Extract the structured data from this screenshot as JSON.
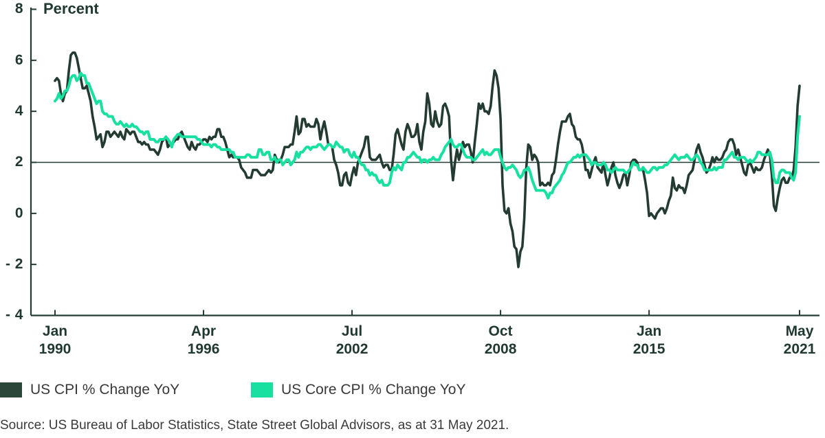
{
  "colors": {
    "dark_line": "#233B31",
    "mint_line": "#17E0A0",
    "dark_swatch": "#2C463A",
    "axis": "#233B31",
    "label_text": "#1F3830",
    "body_text": "#3A3A3A"
  },
  "chart_data": {
    "type": "line",
    "title": "",
    "xlabel": "",
    "ylabel": "Percent",
    "ylim": [
      -4,
      8
    ],
    "grid": false,
    "reference_line": 2,
    "frequency": "monthly",
    "x_start": "Jan 1990",
    "x_end": "May 2021",
    "y_ticks": [
      8,
      6,
      4,
      2,
      0,
      -2,
      -4
    ],
    "y_tick_labels": [
      "8",
      "6",
      "4",
      "2",
      "0",
      "- 2",
      "- 4"
    ],
    "x_ticks": [
      {
        "month": "Jan",
        "year": "1990",
        "index": 0
      },
      {
        "month": "Apr",
        "year": "1996",
        "index": 75
      },
      {
        "month": "Jul",
        "year": "2002",
        "index": 150
      },
      {
        "month": "Oct",
        "year": "2008",
        "index": 225
      },
      {
        "month": "Jan",
        "year": "2015",
        "index": 300
      },
      {
        "month": "May",
        "year": "2021",
        "index": 376
      }
    ],
    "series": [
      {
        "name": "US CPI % Change YoY",
        "color": "#233B31",
        "values": [
          5.2,
          5.3,
          5.2,
          4.7,
          4.4,
          4.7,
          4.8,
          5.6,
          6.2,
          6.3,
          6.3,
          6.1,
          5.7,
          5.3,
          4.9,
          4.9,
          5.0,
          4.7,
          4.4,
          3.8,
          3.4,
          2.9,
          3.0,
          3.1,
          2.6,
          2.8,
          3.2,
          3.2,
          3.0,
          3.1,
          3.2,
          3.1,
          3.0,
          3.2,
          3.0,
          2.9,
          3.3,
          3.2,
          3.1,
          3.2,
          3.2,
          3.0,
          2.8,
          2.8,
          2.7,
          2.8,
          2.7,
          2.7,
          2.5,
          2.5,
          2.5,
          2.4,
          2.3,
          2.5,
          2.8,
          2.9,
          3.0,
          2.6,
          2.7,
          2.7,
          2.8,
          2.9,
          2.9,
          3.1,
          3.2,
          3.0,
          2.8,
          2.6,
          2.5,
          2.8,
          2.6,
          2.5,
          2.7,
          2.7,
          2.8,
          2.9,
          2.9,
          2.8,
          3.0,
          2.9,
          3.0,
          3.0,
          3.3,
          3.3,
          3.0,
          3.0,
          2.8,
          2.5,
          2.2,
          2.3,
          2.2,
          2.2,
          2.2,
          2.1,
          1.8,
          1.7,
          1.6,
          1.4,
          1.4,
          1.4,
          1.7,
          1.7,
          1.7,
          1.6,
          1.5,
          1.5,
          1.5,
          1.6,
          1.7,
          1.6,
          1.7,
          2.3,
          2.1,
          2.0,
          2.1,
          2.3,
          2.6,
          2.6,
          2.6,
          2.7,
          2.7,
          3.2,
          3.8,
          3.1,
          3.2,
          3.7,
          3.7,
          3.4,
          3.5,
          3.4,
          3.4,
          3.4,
          3.7,
          3.5,
          2.9,
          3.3,
          3.6,
          3.2,
          2.7,
          2.7,
          2.6,
          2.1,
          1.9,
          1.6,
          1.1,
          1.1,
          1.5,
          1.6,
          1.2,
          1.1,
          1.5,
          1.8,
          1.5,
          2.0,
          2.2,
          2.4,
          2.6,
          3.0,
          3.0,
          2.2,
          2.1,
          2.1,
          2.1,
          2.2,
          2.3,
          2.0,
          1.8,
          1.9,
          1.9,
          1.7,
          1.7,
          2.3,
          3.1,
          3.3,
          3.0,
          2.7,
          2.5,
          3.2,
          3.5,
          3.3,
          3.0,
          3.0,
          3.1,
          3.5,
          2.8,
          2.5,
          3.2,
          3.6,
          4.7,
          4.3,
          3.5,
          3.4,
          4.0,
          3.6,
          3.4,
          3.5,
          4.2,
          4.3,
          4.1,
          3.8,
          2.1,
          1.3,
          2.0,
          2.5,
          2.1,
          2.4,
          2.8,
          2.6,
          2.7,
          2.7,
          2.4,
          2.0,
          2.8,
          3.5,
          4.3,
          4.1,
          4.3,
          4.0,
          4.0,
          3.9,
          4.2,
          5.0,
          5.6,
          5.4,
          4.9,
          3.7,
          1.1,
          0.1,
          0.0,
          0.2,
          -0.4,
          -0.7,
          -1.3,
          -1.4,
          -2.1,
          -1.5,
          -1.3,
          -0.2,
          1.8,
          2.7,
          2.6,
          2.1,
          2.3,
          2.2,
          2.0,
          1.1,
          1.2,
          1.1,
          1.1,
          1.2,
          1.1,
          1.5,
          1.6,
          2.1,
          2.7,
          3.2,
          3.6,
          3.6,
          3.6,
          3.8,
          3.9,
          3.5,
          3.4,
          3.0,
          2.9,
          2.9,
          2.7,
          2.3,
          1.7,
          1.7,
          1.4,
          1.7,
          2.0,
          2.2,
          1.8,
          1.7,
          1.6,
          2.0,
          1.5,
          1.1,
          1.4,
          1.8,
          2.0,
          1.5,
          1.2,
          1.0,
          1.2,
          1.5,
          1.6,
          1.1,
          1.5,
          2.0,
          2.1,
          2.1,
          2.0,
          1.7,
          1.7,
          1.7,
          1.3,
          0.8,
          -0.1,
          0.0,
          -0.1,
          -0.2,
          0.0,
          0.1,
          0.2,
          0.2,
          0.0,
          0.2,
          0.5,
          0.7,
          1.4,
          1.0,
          0.9,
          1.1,
          1.0,
          1.0,
          0.8,
          1.1,
          1.5,
          1.6,
          1.7,
          2.1,
          2.5,
          2.7,
          2.4,
          2.2,
          1.9,
          1.6,
          1.7,
          1.9,
          2.2,
          2.0,
          2.2,
          2.1,
          2.1,
          2.2,
          2.4,
          2.5,
          2.8,
          2.9,
          2.9,
          2.7,
          2.3,
          2.5,
          2.2,
          1.9,
          1.6,
          1.5,
          1.9,
          2.0,
          1.8,
          1.6,
          1.8,
          1.7,
          1.7,
          1.8,
          2.1,
          2.3,
          2.5,
          2.3,
          1.5,
          0.3,
          0.1,
          0.6,
          1.0,
          1.3,
          1.4,
          1.2,
          1.2,
          1.4,
          1.4,
          1.7,
          2.6,
          4.2,
          5.0
        ]
      },
      {
        "name": "US Core CPI % Change YoY",
        "color": "#17E0A0",
        "values": [
          4.4,
          4.5,
          4.7,
          4.5,
          4.6,
          4.8,
          4.8,
          5.0,
          5.3,
          5.4,
          5.4,
          5.2,
          5.3,
          5.5,
          5.4,
          5.4,
          5.1,
          5.1,
          4.9,
          4.7,
          4.5,
          4.3,
          4.4,
          4.4,
          4.0,
          3.9,
          3.9,
          3.8,
          3.8,
          3.8,
          3.6,
          3.5,
          3.5,
          3.6,
          3.5,
          3.4,
          3.5,
          3.4,
          3.4,
          3.5,
          3.4,
          3.4,
          3.3,
          3.2,
          3.2,
          3.1,
          3.2,
          3.2,
          2.9,
          2.9,
          2.9,
          2.8,
          2.8,
          2.9,
          2.9,
          2.9,
          3.0,
          2.9,
          2.8,
          2.6,
          2.9,
          3.0,
          3.1,
          3.1,
          3.0,
          3.0,
          3.0,
          3.0,
          3.0,
          3.0,
          3.0,
          3.0,
          2.9,
          2.9,
          2.8,
          2.7,
          2.7,
          2.7,
          2.7,
          2.6,
          2.7,
          2.7,
          2.6,
          2.6,
          2.5,
          2.5,
          2.5,
          2.5,
          2.5,
          2.4,
          2.4,
          2.2,
          2.2,
          2.2,
          2.2,
          2.2,
          2.2,
          2.3,
          2.3,
          2.2,
          2.2,
          2.2,
          2.2,
          2.5,
          2.5,
          2.3,
          2.3,
          2.4,
          2.4,
          2.1,
          2.1,
          2.2,
          2.0,
          2.1,
          2.1,
          1.9,
          2.0,
          2.1,
          2.1,
          1.9,
          2.0,
          2.1,
          2.4,
          2.2,
          2.4,
          2.4,
          2.5,
          2.6,
          2.6,
          2.5,
          2.6,
          2.6,
          2.6,
          2.7,
          2.7,
          2.6,
          2.5,
          2.6,
          2.7,
          2.7,
          2.6,
          2.6,
          2.8,
          2.7,
          2.6,
          2.6,
          2.4,
          2.5,
          2.5,
          2.3,
          2.2,
          2.4,
          2.2,
          2.2,
          2.0,
          1.9,
          1.9,
          1.7,
          1.7,
          1.5,
          1.6,
          1.5,
          1.5,
          1.3,
          1.2,
          1.3,
          1.1,
          1.1,
          1.1,
          1.2,
          1.6,
          1.8,
          1.7,
          1.9,
          1.8,
          1.7,
          2.0,
          2.0,
          2.2,
          2.2,
          2.3,
          2.4,
          2.3,
          2.2,
          2.2,
          2.0,
          2.1,
          2.1,
          2.0,
          2.1,
          2.1,
          2.2,
          2.1,
          2.1,
          2.1,
          2.3,
          2.4,
          2.6,
          2.7,
          2.8,
          2.9,
          2.7,
          2.6,
          2.6,
          2.7,
          2.7,
          2.5,
          2.3,
          2.2,
          2.2,
          2.2,
          2.1,
          2.1,
          2.2,
          2.3,
          2.4,
          2.5,
          2.3,
          2.4,
          2.3,
          2.3,
          2.4,
          2.5,
          2.5,
          2.5,
          2.2,
          2.0,
          1.8,
          1.7,
          1.8,
          1.8,
          1.9,
          1.8,
          1.7,
          1.5,
          1.4,
          1.5,
          1.7,
          1.7,
          1.8,
          1.6,
          1.3,
          1.1,
          0.9,
          0.9,
          0.9,
          0.9,
          0.9,
          0.8,
          0.6,
          0.8,
          0.8,
          1.0,
          1.1,
          1.2,
          1.3,
          1.5,
          1.6,
          1.8,
          2.0,
          2.0,
          2.1,
          2.2,
          2.2,
          2.3,
          2.2,
          2.3,
          2.3,
          2.3,
          2.2,
          2.1,
          1.9,
          2.0,
          2.0,
          1.9,
          1.9,
          1.9,
          2.0,
          1.9,
          1.7,
          1.7,
          1.6,
          1.7,
          1.8,
          1.7,
          1.7,
          1.7,
          1.7,
          1.6,
          1.6,
          1.7,
          1.8,
          2.0,
          1.9,
          1.9,
          1.7,
          1.7,
          1.8,
          1.7,
          1.6,
          1.6,
          1.7,
          1.8,
          1.8,
          1.7,
          1.8,
          1.8,
          1.8,
          1.9,
          1.9,
          2.0,
          2.1,
          2.2,
          2.3,
          2.2,
          2.1,
          2.2,
          2.2,
          2.2,
          2.3,
          2.2,
          2.1,
          2.1,
          2.2,
          2.3,
          2.2,
          2.0,
          1.9,
          1.7,
          1.7,
          1.7,
          1.7,
          1.7,
          1.8,
          1.7,
          1.8,
          1.8,
          1.8,
          2.1,
          2.1,
          2.2,
          2.3,
          2.4,
          2.2,
          2.2,
          2.1,
          2.2,
          2.2,
          2.2,
          2.1,
          2.0,
          2.1,
          2.0,
          2.1,
          2.2,
          2.4,
          2.4,
          2.3,
          2.3,
          2.3,
          2.3,
          2.4,
          2.1,
          1.4,
          1.2,
          1.2,
          1.6,
          1.7,
          1.7,
          1.6,
          1.6,
          1.6,
          1.4,
          1.3,
          1.6,
          3.0,
          3.8
        ]
      }
    ]
  },
  "legend": {
    "items": [
      {
        "label": "US CPI % Change YoY",
        "color": "#2C463A"
      },
      {
        "label": "US Core CPI % Change YoY",
        "color": "#17E0A0"
      }
    ]
  },
  "source": "Source: US Bureau of Labor Statistics, State Street Global Advisors, as at 31 May 2021."
}
